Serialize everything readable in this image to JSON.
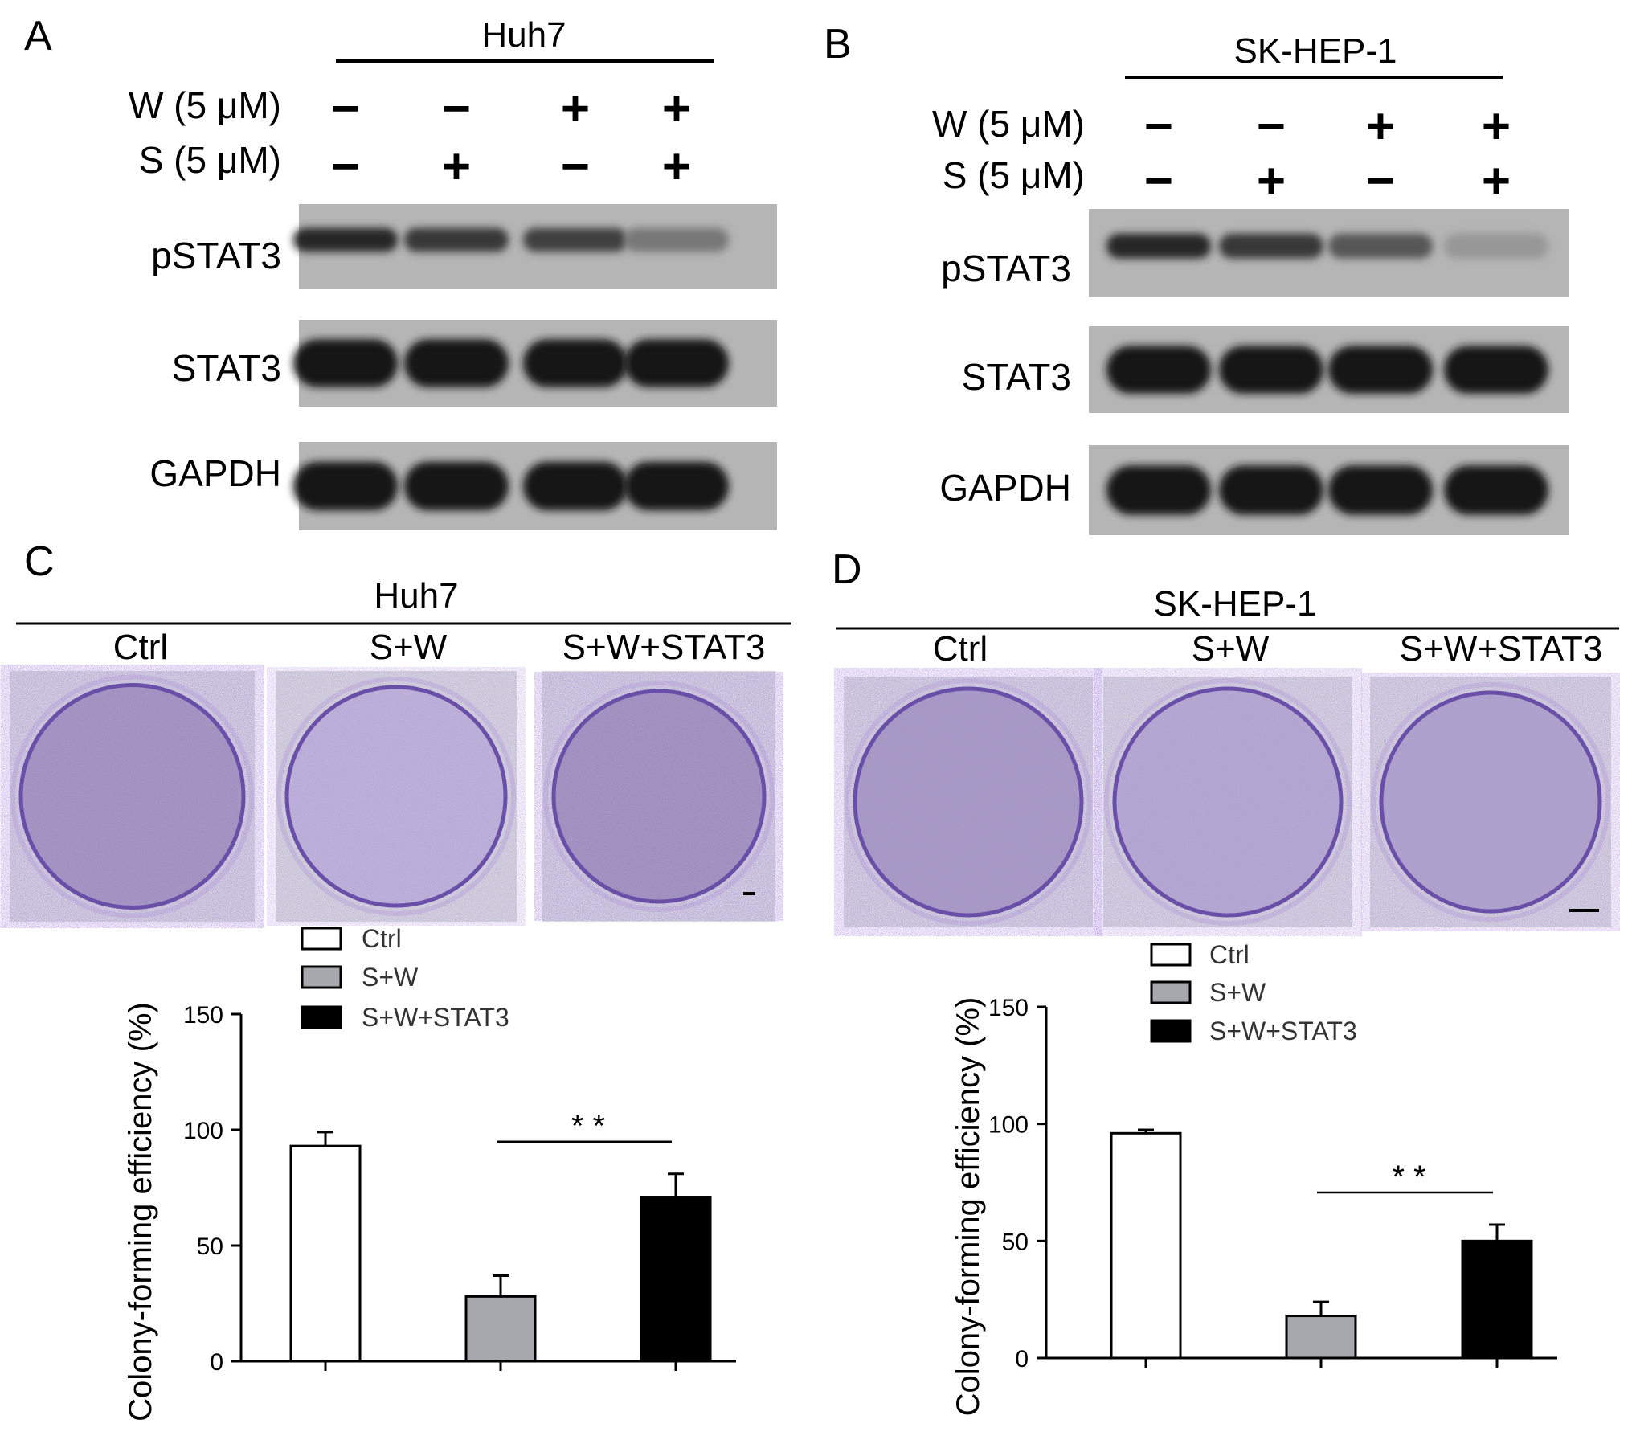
{
  "panels": [
    {
      "letter": "A",
      "cell_line": "Huh7",
      "treatments": [
        {
          "label": "W (5 μM)",
          "signs": [
            "−",
            "−",
            "+",
            "+"
          ]
        },
        {
          "label": "S (5 μM)",
          "signs": [
            "−",
            "+",
            "−",
            "+"
          ]
        }
      ],
      "blots": [
        {
          "label": "pSTAT3",
          "intensity": [
            0.85,
            0.75,
            0.7,
            0.35
          ]
        },
        {
          "label": "STAT3",
          "intensity": [
            0.95,
            0.95,
            0.95,
            0.95
          ]
        },
        {
          "label": "GAPDH",
          "intensity": [
            0.97,
            0.97,
            0.97,
            0.97
          ]
        }
      ]
    },
    {
      "letter": "B",
      "cell_line": "SK-HEP-1",
      "treatments": [
        {
          "label": "W (5 μM)",
          "signs": [
            "−",
            "−",
            "+",
            "+"
          ]
        },
        {
          "label": "S (5 μM)",
          "signs": [
            "−",
            "+",
            "−",
            "+"
          ]
        }
      ],
      "blots": [
        {
          "label": "pSTAT3",
          "intensity": [
            0.85,
            0.75,
            0.55,
            0.15
          ]
        },
        {
          "label": "STAT3",
          "intensity": [
            0.95,
            0.95,
            0.95,
            0.95
          ]
        },
        {
          "label": "GAPDH",
          "intensity": [
            0.97,
            0.97,
            0.97,
            0.97
          ]
        }
      ]
    },
    {
      "letter": "C",
      "cell_line": "Huh7",
      "conditions": [
        "Ctrl",
        "S+W",
        "S+W+STAT3"
      ],
      "stain_density": [
        0.8,
        0.3,
        0.85
      ]
    },
    {
      "letter": "D",
      "cell_line": "SK-HEP-1",
      "conditions": [
        "Ctrl",
        "S+W",
        "S+W+STAT3"
      ],
      "stain_density": [
        0.7,
        0.45,
        0.55
      ]
    }
  ],
  "legend": {
    "entries": [
      "Ctrl",
      "S+W",
      "S+W+STAT3"
    ],
    "colors": [
      "#ffffff",
      "#a7a8ad",
      "#000000"
    ]
  },
  "significance_label": "* *",
  "chart_data": [
    {
      "type": "bar",
      "categories": [
        "Ctrl",
        "S+W",
        "S+W+STAT3"
      ],
      "values": [
        93,
        28,
        71
      ],
      "errors": [
        6,
        9,
        10
      ],
      "ylabel": "Colony-forming efficiency (%)",
      "ylim": [
        0,
        150
      ],
      "yticks": [
        0,
        50,
        100,
        150
      ],
      "significance": {
        "from": "S+W",
        "to": "S+W+STAT3",
        "label": "* *"
      }
    },
    {
      "type": "bar",
      "categories": [
        "Ctrl",
        "S+W",
        "S+W+STAT3"
      ],
      "values": [
        96,
        18,
        50
      ],
      "errors": [
        1.5,
        6,
        7
      ],
      "ylabel": "Colony-forming efficiency (%)",
      "ylim": [
        0,
        150
      ],
      "yticks": [
        0,
        50,
        100,
        150
      ],
      "significance": {
        "from": "S+W",
        "to": "S+W+STAT3",
        "label": "* *"
      }
    }
  ]
}
